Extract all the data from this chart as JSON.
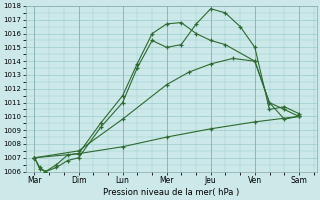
{
  "xlabel": "Pression niveau de la mer( hPa )",
  "days": [
    "Mar",
    "Dim",
    "Lun",
    "Mer",
    "Jeu",
    "Ven",
    "Sam"
  ],
  "series": {
    "s1_x": [
      0,
      0.12,
      0.25,
      0.5,
      0.75,
      1.0,
      1.5,
      2.0,
      2.33,
      2.67,
      3.0,
      3.33,
      3.67,
      4.0,
      4.33,
      4.67,
      5.0,
      5.33,
      5.67,
      6.0
    ],
    "s1_y": [
      1007.0,
      1006.2,
      1006.0,
      1006.3,
      1006.8,
      1007.0,
      1009.2,
      1011.0,
      1013.5,
      1015.5,
      1015.0,
      1015.2,
      1016.7,
      1017.8,
      1017.5,
      1016.5,
      1015.0,
      1010.5,
      1010.7,
      1010.2
    ],
    "s2_x": [
      0,
      0.12,
      0.25,
      0.5,
      0.75,
      1.0,
      1.5,
      2.0,
      2.33,
      2.67,
      3.0,
      3.33,
      3.67,
      4.0,
      4.33,
      5.0,
      5.33,
      5.67,
      6.0
    ],
    "s2_y": [
      1007.0,
      1006.3,
      1006.0,
      1006.5,
      1007.2,
      1007.3,
      1009.5,
      1011.5,
      1013.8,
      1016.0,
      1016.7,
      1016.8,
      1016.0,
      1015.5,
      1015.2,
      1014.0,
      1011.0,
      1010.5,
      1010.0
    ],
    "s3_x": [
      0,
      1.0,
      2.0,
      3.0,
      3.5,
      4.0,
      4.5,
      5.0,
      5.33,
      5.67,
      6.0
    ],
    "s3_y": [
      1007.0,
      1007.5,
      1009.8,
      1012.3,
      1013.2,
      1013.8,
      1014.2,
      1014.0,
      1011.0,
      1009.8,
      1010.0
    ],
    "s4_x": [
      0,
      1.0,
      2.0,
      3.0,
      4.0,
      5.0,
      6.0
    ],
    "s4_y": [
      1007.0,
      1007.3,
      1007.8,
      1008.5,
      1009.1,
      1009.6,
      1010.0
    ]
  },
  "ylim": [
    1006,
    1018
  ],
  "yticks": [
    1006,
    1007,
    1008,
    1009,
    1010,
    1011,
    1012,
    1013,
    1014,
    1015,
    1016,
    1017,
    1018
  ],
  "line_color": "#2d6a2d",
  "bg_color": "#cce8e8",
  "grid_color": "#99cccc",
  "spine_color": "#88aaaa"
}
